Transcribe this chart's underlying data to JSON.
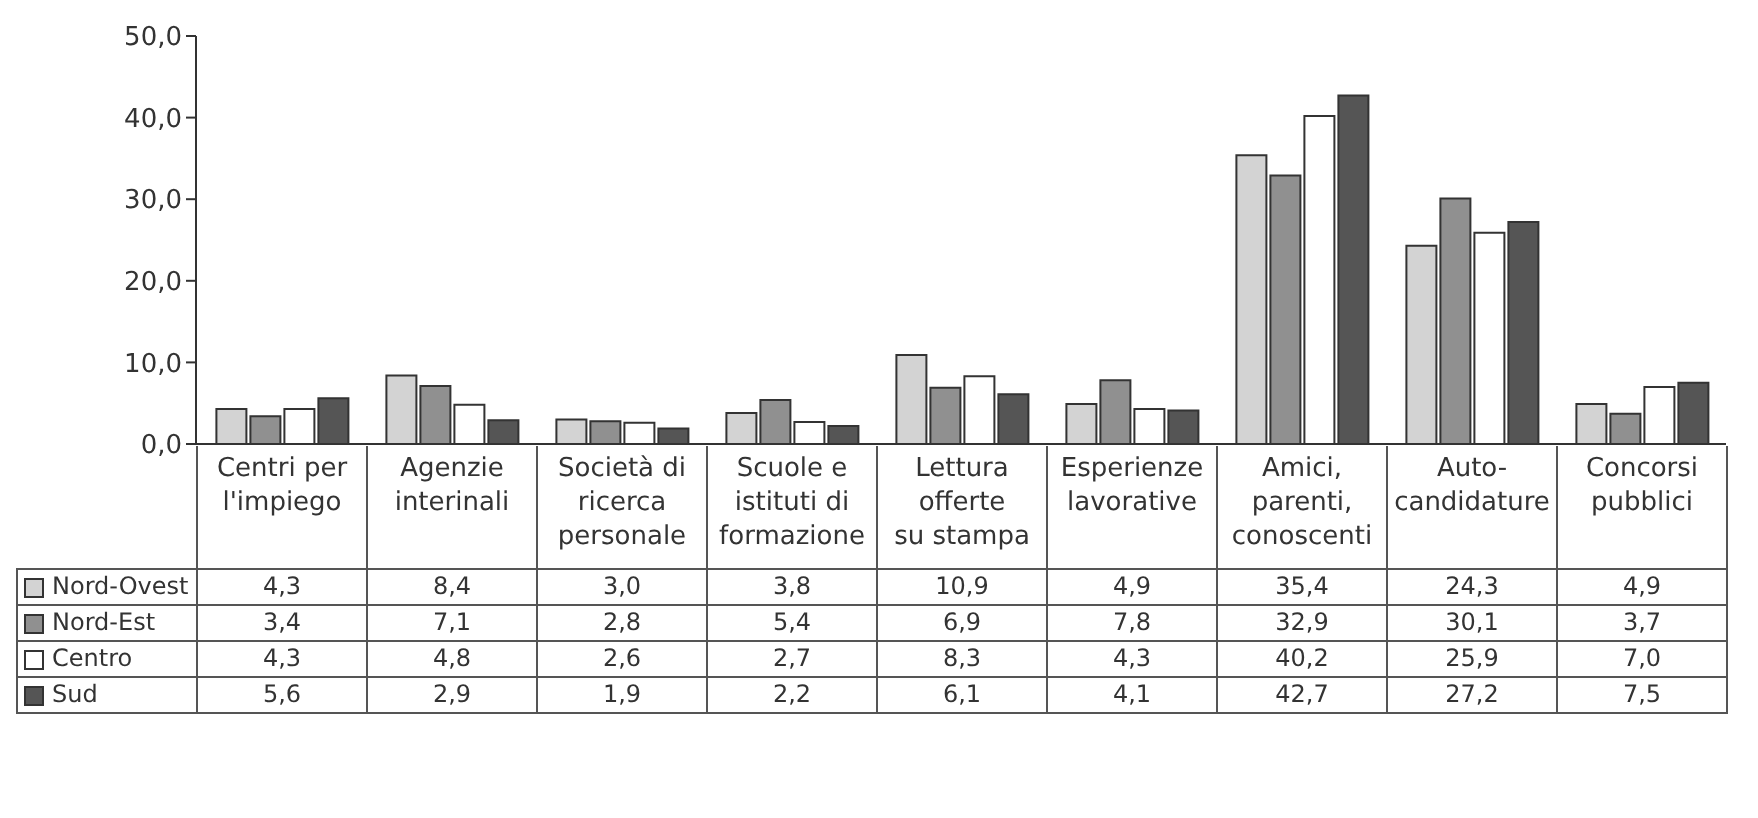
{
  "chart_data": {
    "type": "bar",
    "categories": [
      "Centri per\nl'impiego",
      "Agenzie\ninterinali",
      "Società di\nricerca\npersonale",
      "Scuole e\nistituti di\nformazione",
      "Lettura\nofferte\nsu stampa",
      "Esperienze\nlavorative",
      "Amici,\nparenti,\nconoscenti",
      "Auto-\ncandidature",
      "Concorsi\npubblici"
    ],
    "series": [
      {
        "name": "Nord-Ovest",
        "color": "#d3d3d3",
        "values": [
          4.3,
          8.4,
          3.0,
          3.8,
          10.9,
          4.9,
          35.4,
          24.3,
          4.9
        ],
        "value_labels": [
          "4,3",
          "8,4",
          "3,0",
          "3,8",
          "10,9",
          "4,9",
          "35,4",
          "24,3",
          "4,9"
        ]
      },
      {
        "name": "Nord-Est",
        "color": "#909090",
        "values": [
          3.4,
          7.1,
          2.8,
          5.4,
          6.9,
          7.8,
          32.9,
          30.1,
          3.7
        ],
        "value_labels": [
          "3,4",
          "7,1",
          "2,8",
          "5,4",
          "6,9",
          "7,8",
          "32,9",
          "30,1",
          "3,7"
        ]
      },
      {
        "name": "Centro",
        "color": "#ffffff",
        "values": [
          4.3,
          4.8,
          2.6,
          2.7,
          8.3,
          4.3,
          40.2,
          25.9,
          7.0
        ],
        "value_labels": [
          "4,3",
          "4,8",
          "2,6",
          "2,7",
          "8,3",
          "4,3",
          "40,2",
          "25,9",
          "7,0"
        ]
      },
      {
        "name": "Sud",
        "color": "#555555",
        "values": [
          5.6,
          2.9,
          1.9,
          2.2,
          6.1,
          4.1,
          42.7,
          27.2,
          7.5
        ],
        "value_labels": [
          "5,6",
          "2,9",
          "1,9",
          "2,2",
          "6,1",
          "4,1",
          "42,7",
          "27,2",
          "7,5"
        ]
      }
    ],
    "ylim": [
      0,
      50
    ],
    "yticks": [
      {
        "value": 0,
        "label": "0,0"
      },
      {
        "value": 10,
        "label": "10,0"
      },
      {
        "value": 20,
        "label": "20,0"
      },
      {
        "value": 30,
        "label": "30,0"
      },
      {
        "value": 40,
        "label": "40,0"
      },
      {
        "value": 50,
        "label": "50,0"
      }
    ],
    "legend": "bottom left",
    "grid": false
  }
}
